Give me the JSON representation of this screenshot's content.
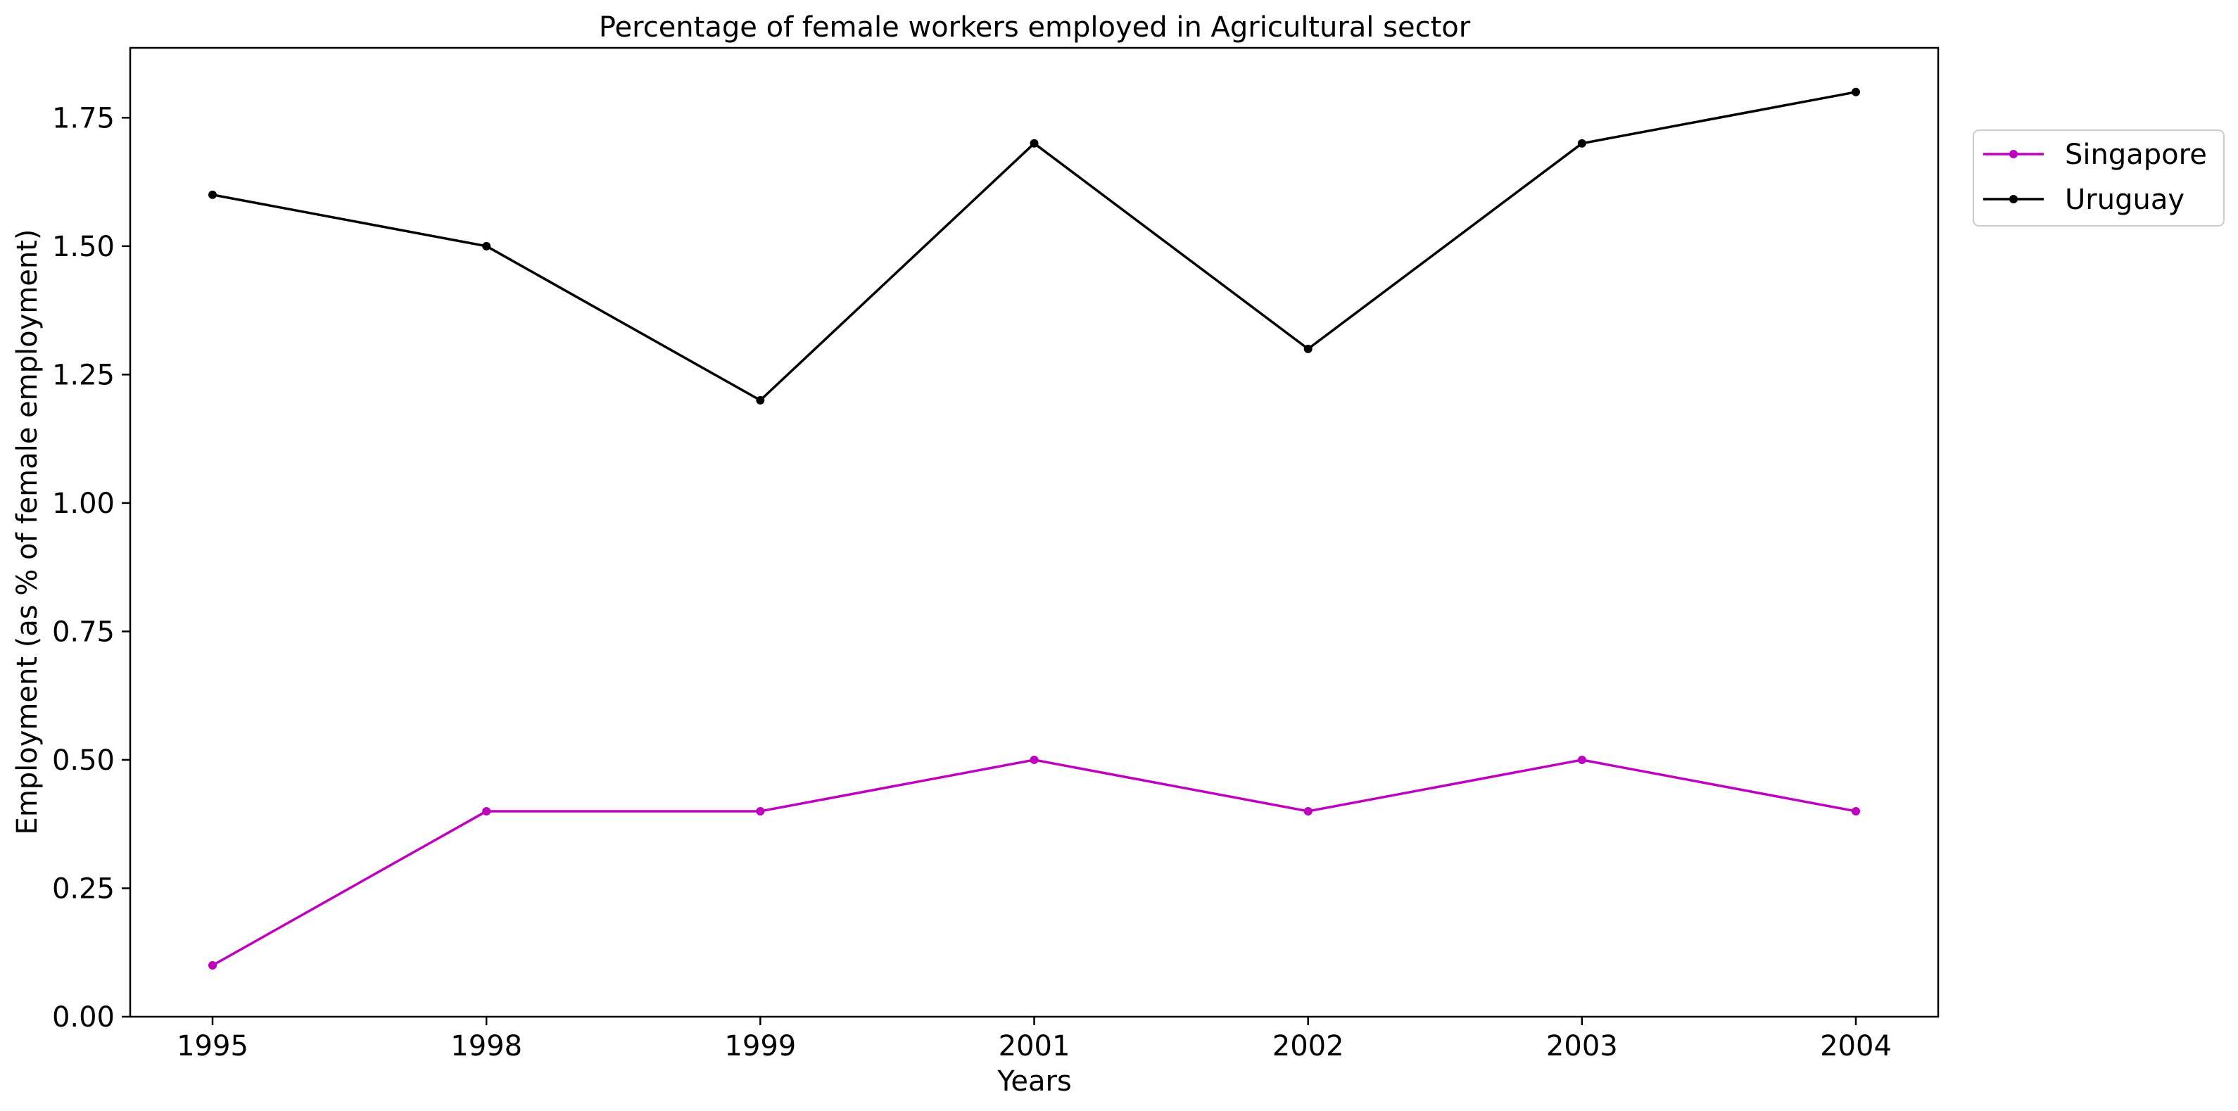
{
  "chart_data": {
    "type": "line",
    "title": "Percentage of female workers employed in Agricultural sector",
    "xlabel": "Years",
    "ylabel": "Employment (as % of female employment)",
    "categories": [
      "1995",
      "1998",
      "1999",
      "2001",
      "2002",
      "2003",
      "2004"
    ],
    "ylim": [
      0,
      1.886
    ],
    "yticks": [
      "0.00",
      "0.25",
      "0.50",
      "0.75",
      "1.00",
      "1.25",
      "1.50",
      "1.75"
    ],
    "grid": false,
    "legend_position": "top-right, outside plot",
    "series": [
      {
        "name": "Singapore",
        "color": "#bf00bf",
        "marker": "dot",
        "values": [
          0.1,
          0.4,
          0.4,
          0.5,
          0.4,
          0.5,
          0.4
        ]
      },
      {
        "name": "Uruguay",
        "color": "#000000",
        "marker": "dot",
        "values": [
          1.6,
          1.5,
          1.2,
          1.7,
          1.3,
          1.7,
          1.8
        ]
      }
    ]
  }
}
